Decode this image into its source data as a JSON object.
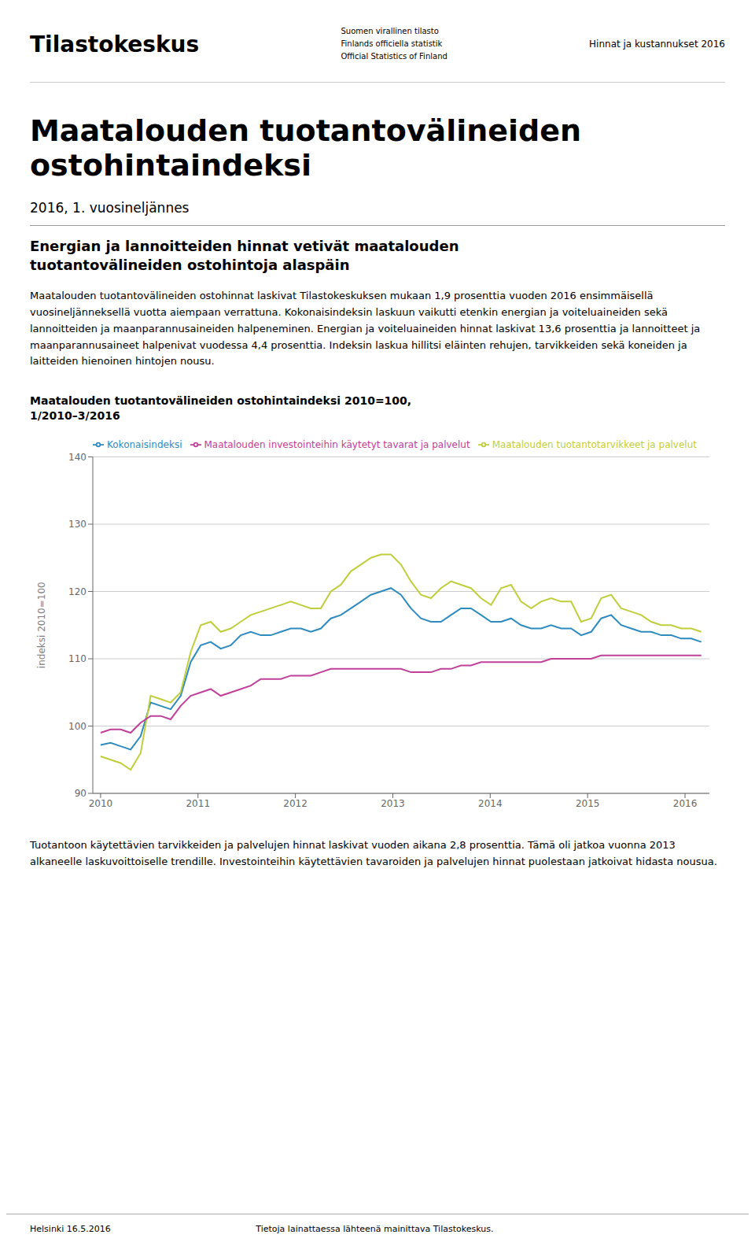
{
  "logo_text": "Tilastokeskus",
  "official_text": "Suomen virallinen tilasto\nFinlands officiella statistik\nOfficial Statistics of Finland",
  "header_right": "Hinnat ja kustannukset 2016",
  "main_title": "Maatalouden tuotantovälineiden\nostohintaindeksi",
  "subtitle1": "2016, 1. vuosineljännes",
  "body_text1": "Energian ja lannoitteiden hinnat vetivät maatalouden\ntuotantovälineiden ostohintoja alaspäin",
  "body_text2": "Maatalouden tuotantovälineiden ostohinnat laskivat Tilastokeskuksen mukaan 1,9 prosenttia vuoden 2016 ensimmäisellä vuosineljänneksellä vuotta aiempaan verrattuna. Kokonaisindeksin laskuun vaikutti etenkin energian ja voiteluaineiden sekä lannoitteiden ja maanparannusaineiden halpeneminen. Energian ja voiteluaineiden hinnat laskivat 13,6 prosenttia ja lannoitteet ja maanparannusaineet halpenivat vuodessa 4,4 prosenttia. Indeksin laskua hillitsi eläinten rehujen, tarvikkeiden sekä koneiden ja laitteiden hienoinen hintojen nousu.",
  "footer_text1": "Tuotantoon käytettävien tarvikkeiden ja palvelujen hinnat laskivat vuoden aikana 2,8 prosenttia. Tämä oli jatkoa vuonna 2013 alkaneelle laskuvoittoiselle trendille. Investointeihin käytettävien tavaroiden ja palvelujen hinnat puolestaan jatkoivat hidasta nousua.",
  "footer_date": "Helsinki 16.5.2016",
  "footer_source": "Tietoja lainattaessa lähteenä mainittava Tilastokeskus.",
  "chart_data": {
    "type": "line",
    "title": "Maatalouden tuotantovälineiden ostohintaindeksi 2010=100,\n1/2010–3/2016",
    "ylabel": "indeksi 2010=100",
    "x": [
      2010,
      2010.102778,
      2010.205556,
      2010.308333,
      2010.411111,
      2010.513889,
      2010.616667,
      2010.719444,
      2010.822222,
      2010.925,
      2011.027778,
      2011.130556,
      2011.233333,
      2011.336111,
      2011.438889,
      2011.541667,
      2011.644444,
      2011.747222,
      2011.85,
      2011.952778,
      2012.055556,
      2012.158333,
      2012.261111,
      2012.363889,
      2012.466667,
      2012.569444,
      2012.672222,
      2012.775,
      2012.877778,
      2012.980556,
      2013.083333,
      2013.186111,
      2013.288889,
      2013.391667,
      2013.494444,
      2013.597222,
      2013.7,
      2013.802778,
      2013.905556,
      2014.008333,
      2014.111111,
      2014.213889,
      2014.316667,
      2014.419444,
      2014.522222,
      2014.625,
      2014.727778,
      2014.830556,
      2014.933333,
      2015.036111,
      2015.138889,
      2015.241667,
      2015.344444,
      2015.447222,
      2015.55,
      2015.652778,
      2015.755556,
      2015.858333,
      2015.961111,
      2016.063889,
      2016.166667
    ],
    "xlim": [
      2009.92,
      2016.25
    ],
    "xticks": [
      2010,
      2011,
      2012,
      2013,
      2014,
      2015,
      2016
    ],
    "ylim": [
      90,
      140
    ],
    "yticks": [
      90,
      100,
      110,
      120,
      130,
      140
    ],
    "grid": true,
    "legend": "upper left",
    "series": [
      {
        "name": "Kokonaisindeksi",
        "color": "#2E8BC0",
        "values": [
          97.2,
          97.5,
          97.0,
          96.5,
          98.5,
          103.5,
          103.0,
          102.5,
          104.5,
          109.5,
          112.0,
          112.5,
          111.5,
          112.0,
          113.5,
          114.0,
          113.5,
          113.5,
          114.0,
          114.5,
          114.5,
          114.0,
          114.5,
          116.0,
          116.5,
          117.5,
          118.5,
          119.5,
          120.0,
          120.5,
          119.5,
          117.5,
          116.0,
          115.5,
          115.5,
          116.5,
          117.5,
          117.5,
          116.5,
          115.5,
          115.5,
          116.0,
          115.0,
          114.5,
          114.5,
          115.0,
          114.5,
          114.5,
          113.5,
          114.0,
          116.0,
          116.5,
          115.0,
          114.5,
          114.0,
          114.0,
          113.5,
          113.5,
          113.0,
          113.0,
          112.5
        ]
      },
      {
        "name": "Maatalouden tuotantotarvikkeet ja palvelut",
        "color": "#BFCE3A",
        "values": [
          95.5,
          95.0,
          94.5,
          93.5,
          96.0,
          104.5,
          104.0,
          103.5,
          105.0,
          111.0,
          115.0,
          115.5,
          114.0,
          114.5,
          115.5,
          116.5,
          117.0,
          117.5,
          118.0,
          118.5,
          118.0,
          117.5,
          117.5,
          120.0,
          121.0,
          123.0,
          124.0,
          125.0,
          125.5,
          125.5,
          124.0,
          121.5,
          119.5,
          119.0,
          120.5,
          121.5,
          121.0,
          120.5,
          119.0,
          118.0,
          120.5,
          121.0,
          118.5,
          117.5,
          118.5,
          119.0,
          118.5,
          118.5,
          115.5,
          116.0,
          119.0,
          119.5,
          117.5,
          117.0,
          116.5,
          115.5,
          115.0,
          115.0,
          114.5,
          114.5,
          114.0
        ]
      },
      {
        "name": "Maatalouden investointeihin käytetyt tavarat ja palvelut",
        "color": "#C0409A",
        "values": [
          99.0,
          99.5,
          99.5,
          99.0,
          100.5,
          101.5,
          101.5,
          101.0,
          103.0,
          104.5,
          105.0,
          105.5,
          104.5,
          105.0,
          105.5,
          106.0,
          107.0,
          107.0,
          107.0,
          107.5,
          107.5,
          107.5,
          108.0,
          108.5,
          108.5,
          108.5,
          108.5,
          108.5,
          108.5,
          108.5,
          108.5,
          108.0,
          108.0,
          108.0,
          108.5,
          108.5,
          109.0,
          109.0,
          109.5,
          109.5,
          109.5,
          109.5,
          109.5,
          109.5,
          109.5,
          110.0,
          110.0,
          110.0,
          110.0,
          110.0,
          110.5,
          110.5,
          110.5,
          110.5,
          110.5,
          110.5,
          110.5,
          110.5,
          110.5,
          110.5,
          110.5
        ]
      }
    ]
  }
}
